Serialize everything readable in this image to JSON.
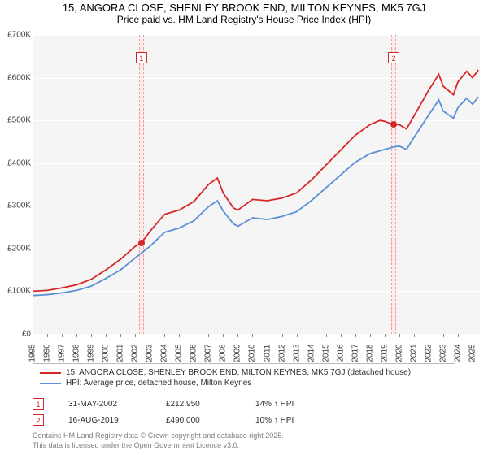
{
  "title": "15, ANGORA CLOSE, SHENLEY BROOK END, MILTON KEYNES, MK5 7GJ",
  "subtitle": "Price paid vs. HM Land Registry's House Price Index (HPI)",
  "chart": {
    "type": "line",
    "background_color": "#f5f5f5",
    "grid_color": "#ffffff",
    "text_color": "#404040",
    "ylim": [
      0,
      700000
    ],
    "ytick_step": 100000,
    "y_tick_labels": [
      "£0",
      "£100K",
      "£200K",
      "£300K",
      "£400K",
      "£500K",
      "£600K",
      "£700K"
    ],
    "xlim": [
      1995,
      2025.5
    ],
    "x_tick_step": 1,
    "x_tick_labels": [
      "1995",
      "1996",
      "1997",
      "1998",
      "1999",
      "2000",
      "2001",
      "2002",
      "2003",
      "2004",
      "2005",
      "2006",
      "2007",
      "2008",
      "2009",
      "2010",
      "2011",
      "2012",
      "2013",
      "2014",
      "2015",
      "2016",
      "2017",
      "2018",
      "2019",
      "2020",
      "2021",
      "2022",
      "2023",
      "2024",
      "2025"
    ],
    "series": [
      {
        "name": "property",
        "color": "#d62728",
        "label": "15, ANGORA CLOSE, SHENLEY BROOK END, MILTON KEYNES, MK5 7GJ (detached house)",
        "values": [
          [
            1995,
            100000
          ],
          [
            1996,
            102000
          ],
          [
            1997,
            108000
          ],
          [
            1998,
            115000
          ],
          [
            1999,
            128000
          ],
          [
            2000,
            150000
          ],
          [
            2001,
            175000
          ],
          [
            2002,
            205000
          ],
          [
            2002.42,
            212950
          ],
          [
            2003,
            240000
          ],
          [
            2004,
            280000
          ],
          [
            2005,
            290000
          ],
          [
            2006,
            310000
          ],
          [
            2007,
            350000
          ],
          [
            2007.6,
            365000
          ],
          [
            2008,
            330000
          ],
          [
            2008.7,
            295000
          ],
          [
            2009,
            290000
          ],
          [
            2010,
            315000
          ],
          [
            2011,
            312000
          ],
          [
            2012,
            318000
          ],
          [
            2013,
            330000
          ],
          [
            2014,
            360000
          ],
          [
            2015,
            395000
          ],
          [
            2016,
            430000
          ],
          [
            2017,
            465000
          ],
          [
            2018,
            490000
          ],
          [
            2018.7,
            500000
          ],
          [
            2019,
            498000
          ],
          [
            2019.63,
            490000
          ],
          [
            2020,
            490000
          ],
          [
            2020.5,
            480000
          ],
          [
            2021,
            510000
          ],
          [
            2022,
            570000
          ],
          [
            2022.7,
            608000
          ],
          [
            2023,
            580000
          ],
          [
            2023.7,
            560000
          ],
          [
            2024,
            590000
          ],
          [
            2024.6,
            615000
          ],
          [
            2025,
            600000
          ],
          [
            2025.4,
            618000
          ]
        ]
      },
      {
        "name": "hpi",
        "color": "#5b8fd6",
        "label": "HPI: Average price, detached house, Milton Keynes",
        "values": [
          [
            1995,
            90000
          ],
          [
            1996,
            92000
          ],
          [
            1997,
            96000
          ],
          [
            1998,
            102000
          ],
          [
            1999,
            112000
          ],
          [
            2000,
            130000
          ],
          [
            2001,
            150000
          ],
          [
            2002,
            178000
          ],
          [
            2003,
            205000
          ],
          [
            2004,
            238000
          ],
          [
            2005,
            248000
          ],
          [
            2006,
            265000
          ],
          [
            2007,
            298000
          ],
          [
            2007.6,
            312000
          ],
          [
            2008,
            288000
          ],
          [
            2008.7,
            258000
          ],
          [
            2009,
            252000
          ],
          [
            2010,
            272000
          ],
          [
            2011,
            268000
          ],
          [
            2012,
            275000
          ],
          [
            2013,
            286000
          ],
          [
            2014,
            312000
          ],
          [
            2015,
            342000
          ],
          [
            2016,
            372000
          ],
          [
            2017,
            402000
          ],
          [
            2018,
            422000
          ],
          [
            2019,
            432000
          ],
          [
            2019.63,
            438000
          ],
          [
            2020,
            440000
          ],
          [
            2020.5,
            432000
          ],
          [
            2021,
            460000
          ],
          [
            2022,
            512000
          ],
          [
            2022.7,
            548000
          ],
          [
            2023,
            522000
          ],
          [
            2023.7,
            505000
          ],
          [
            2024,
            530000
          ],
          [
            2024.6,
            552000
          ],
          [
            2025,
            538000
          ],
          [
            2025.4,
            555000
          ]
        ]
      }
    ],
    "markers": [
      {
        "n": "1",
        "x": 2002.42,
        "y": 212950,
        "flag_y": 660000
      },
      {
        "n": "2",
        "x": 2019.63,
        "y": 490000,
        "flag_y": 660000
      }
    ]
  },
  "legend": {
    "border_color": "#bbbbbb"
  },
  "sales": [
    {
      "n": "1",
      "date": "31-MAY-2002",
      "price": "£212,950",
      "diff": "14% ↑ HPI"
    },
    {
      "n": "2",
      "date": "16-AUG-2019",
      "price": "£490,000",
      "diff": "10% ↑ HPI"
    }
  ],
  "footer": {
    "line1": "Contains HM Land Registry data © Crown copyright and database right 2025.",
    "line2": "This data is licensed under the Open Government Licence v3.0."
  }
}
